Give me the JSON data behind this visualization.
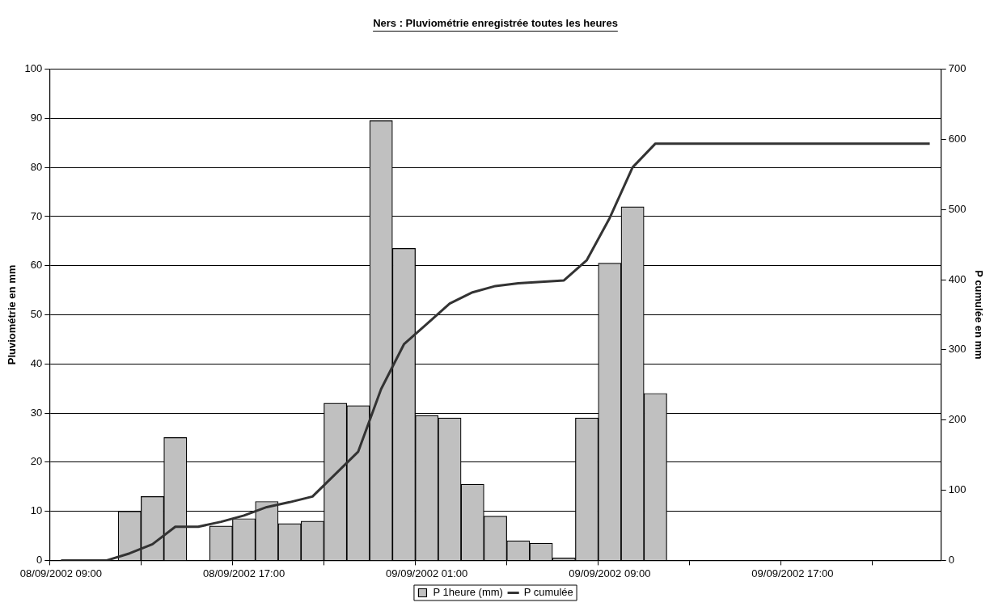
{
  "chart_data": {
    "type": "bar",
    "title": "Ners : Pluviométrie enregistrée toutes les heures",
    "ylabel": "Pluviométrie en mm",
    "y2label": "P cumulée en mm",
    "categories": [
      "08/09/2002 09:00",
      null,
      null,
      null,
      null,
      null,
      null,
      null,
      "08/09/2002 17:00",
      null,
      null,
      null,
      null,
      null,
      null,
      null,
      "09/09/2002 01:00",
      null,
      null,
      null,
      null,
      null,
      null,
      null,
      "09/09/2002 09:00",
      null,
      null,
      null,
      null,
      null,
      null,
      null,
      "09/09/2002 17:00",
      null,
      null,
      null,
      null,
      null,
      null
    ],
    "series": [
      {
        "name": "P 1heure (mm)",
        "color": "#c0c0c0",
        "values": [
          0,
          0,
          0,
          10,
          13,
          25,
          0,
          7,
          8.5,
          12,
          7.5,
          8,
          32,
          31.5,
          89.5,
          63.5,
          29.5,
          29,
          15.5,
          9,
          4,
          3.5,
          0.5,
          29,
          60.5,
          72,
          34,
          0,
          0,
          0,
          0,
          0,
          0,
          0,
          0,
          0,
          0,
          0,
          0
        ]
      },
      {
        "name": "P cumulée",
        "type": "line",
        "axis": "y2",
        "color": "#333333",
        "values": [
          0,
          0,
          0,
          10,
          23,
          48,
          48,
          55,
          64,
          76,
          83,
          91,
          123,
          155,
          244,
          308,
          337,
          366,
          382,
          391,
          395,
          397,
          399,
          428,
          488,
          560,
          594,
          594,
          594,
          594,
          594,
          594,
          594,
          594,
          594,
          594,
          594,
          594,
          594
        ]
      }
    ],
    "ylim": [
      0,
      100
    ],
    "yticks": [
      0,
      10,
      20,
      30,
      40,
      50,
      60,
      70,
      80,
      90,
      100
    ],
    "y2lim": [
      0,
      700
    ],
    "y2ticks": [
      0,
      100,
      200,
      300,
      400,
      500,
      600,
      700
    ],
    "grid": "y",
    "legend": "bottom",
    "marker": "none"
  }
}
